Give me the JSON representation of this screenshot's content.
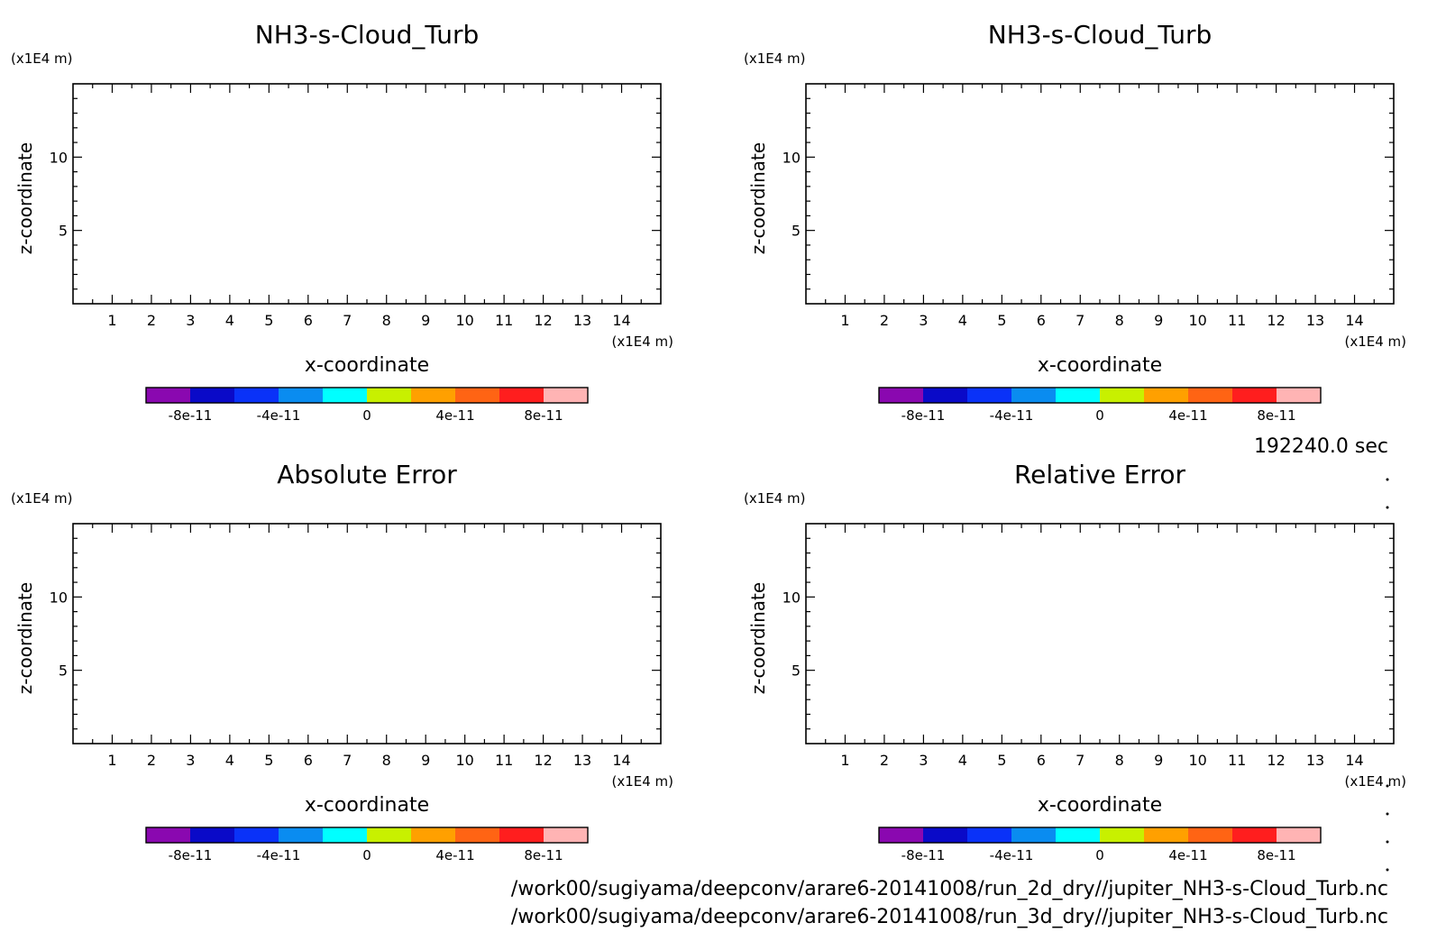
{
  "figure": {
    "time_label": "192240.0 sec",
    "file_paths": [
      "/work00/sugiyama/deepconv/arare6-20141008/run_2d_dry//jupiter_NH3-s-Cloud_Turb.nc",
      "/work00/sugiyama/deepconv/arare6-20141008/run_3d_dry//jupiter_NH3-s-Cloud_Turb.nc"
    ]
  },
  "colorbar": {
    "colors": [
      "#8a08b0",
      "#0a0ac8",
      "#0a32f8",
      "#0a8cf0",
      "#00ffff",
      "#c8f000",
      "#ffa000",
      "#ff6414",
      "#ff1e1e",
      "#ffb4b4"
    ],
    "boundaries": [
      -1e-10,
      -8e-11,
      -6e-11,
      -4e-11,
      -2e-11,
      0,
      2e-11,
      4e-11,
      6e-11,
      8e-11,
      1e-10
    ],
    "tick_values": [
      -8e-11,
      -4e-11,
      0,
      4e-11,
      8e-11
    ],
    "tick_labels": [
      "-8e-11",
      "-4e-11",
      "0",
      "4e-11",
      "8e-11"
    ]
  },
  "chart_data": [
    {
      "type": "heatmap",
      "title": "NH3-s-Cloud_Turb",
      "xlabel": "x-coordinate",
      "ylabel": "z-coordinate",
      "x_unit": "(x1E4 m)",
      "y_unit": "(x1E4 m)",
      "xlim": [
        0,
        15
      ],
      "ylim": [
        0,
        15
      ],
      "xticks": [
        1,
        2,
        3,
        4,
        5,
        6,
        7,
        8,
        9,
        10,
        11,
        12,
        13,
        14
      ],
      "yticks": [
        5,
        10
      ],
      "values": []
    },
    {
      "type": "heatmap",
      "title": "NH3-s-Cloud_Turb",
      "xlabel": "x-coordinate",
      "ylabel": "z-coordinate",
      "x_unit": "(x1E4 m)",
      "y_unit": "(x1E4 m)",
      "xlim": [
        0,
        15
      ],
      "ylim": [
        0,
        15
      ],
      "xticks": [
        1,
        2,
        3,
        4,
        5,
        6,
        7,
        8,
        9,
        10,
        11,
        12,
        13,
        14
      ],
      "yticks": [
        5,
        10
      ],
      "values": []
    },
    {
      "type": "heatmap",
      "title": "Absolute Error",
      "xlabel": "x-coordinate",
      "ylabel": "z-coordinate",
      "x_unit": "(x1E4 m)",
      "y_unit": "(x1E4 m)",
      "xlim": [
        0,
        15
      ],
      "ylim": [
        0,
        15
      ],
      "xticks": [
        1,
        2,
        3,
        4,
        5,
        6,
        7,
        8,
        9,
        10,
        11,
        12,
        13,
        14
      ],
      "yticks": [
        5,
        10
      ],
      "values": []
    },
    {
      "type": "heatmap",
      "title": "Relative Error",
      "xlabel": "x-coordinate",
      "ylabel": "z-coordinate",
      "x_unit": "(x1E4 m)",
      "y_unit": "(x1E4 m)",
      "xlim": [
        0,
        15
      ],
      "ylim": [
        0,
        15
      ],
      "xticks": [
        1,
        2,
        3,
        4,
        5,
        6,
        7,
        8,
        9,
        10,
        11,
        12,
        13,
        14
      ],
      "yticks": [
        5,
        10
      ],
      "values": []
    }
  ]
}
